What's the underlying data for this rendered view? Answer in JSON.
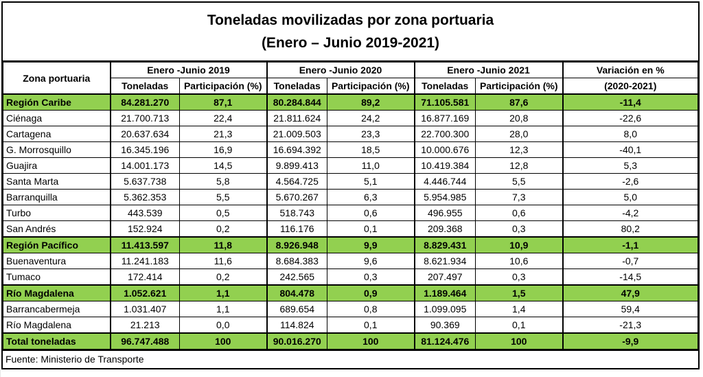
{
  "title": {
    "line1": "Toneladas movilizadas por zona portuaria",
    "line2": "(Enero – Junio 2019-2021)"
  },
  "header": {
    "zone": "Zona portuaria",
    "periods": [
      "Enero -Junio 2019",
      "Enero -Junio 2020",
      "Enero -Junio 2021"
    ],
    "tons": "Toneladas",
    "share": "Participación (%)",
    "variation_line1": "Variación en %",
    "variation_line2": "(2020-2021)"
  },
  "rows": [
    {
      "name": "Región Caribe",
      "t2019": "84.281.270",
      "p2019": "87,1",
      "t2020": "80.284.844",
      "p2020": "89,2",
      "t2021": "71.105.581",
      "p2021": "87,6",
      "var": "-11,4"
    },
    {
      "name": "Ciénaga",
      "t2019": "21.700.713",
      "p2019": "22,4",
      "t2020": "21.811.624",
      "p2020": "24,2",
      "t2021": "16.877.169",
      "p2021": "20,8",
      "var": "-22,6"
    },
    {
      "name": "Cartagena",
      "t2019": "20.637.634",
      "p2019": "21,3",
      "t2020": "21.009.503",
      "p2020": "23,3",
      "t2021": "22.700.300",
      "p2021": "28,0",
      "var": "8,0"
    },
    {
      "name": "G. Morrosquillo",
      "t2019": "16.345.196",
      "p2019": "16,9",
      "t2020": "16.694.392",
      "p2020": "18,5",
      "t2021": "10.000.676",
      "p2021": "12,3",
      "var": "-40,1"
    },
    {
      "name": "Guajira",
      "t2019": "14.001.173",
      "p2019": "14,5",
      "t2020": "9.899.413",
      "p2020": "11,0",
      "t2021": "10.419.384",
      "p2021": "12,8",
      "var": "5,3"
    },
    {
      "name": "Santa Marta",
      "t2019": "5.637.738",
      "p2019": "5,8",
      "t2020": "4.564.725",
      "p2020": "5,1",
      "t2021": "4.446.744",
      "p2021": "5,5",
      "var": "-2,6"
    },
    {
      "name": "Barranquilla",
      "t2019": "5.362.353",
      "p2019": "5,5",
      "t2020": "5.670.267",
      "p2020": "6,3",
      "t2021": "5.954.985",
      "p2021": "7,3",
      "var": "5,0"
    },
    {
      "name": "Turbo",
      "t2019": "443.539",
      "p2019": "0,5",
      "t2020": "518.743",
      "p2020": "0,6",
      "t2021": "496.955",
      "p2021": "0,6",
      "var": "-4,2"
    },
    {
      "name": "San Andrés",
      "t2019": "152.924",
      "p2019": "0,2",
      "t2020": "116.176",
      "p2020": "0,1",
      "t2021": "209.368",
      "p2021": "0,3",
      "var": "80,2"
    },
    {
      "name": "Región Pacífico",
      "t2019": "11.413.597",
      "p2019": "11,8",
      "t2020": "8.926.948",
      "p2020": "9,9",
      "t2021": "8.829.431",
      "p2021": "10,9",
      "var": "-1,1"
    },
    {
      "name": "Buenaventura",
      "t2019": "11.241.183",
      "p2019": "11,6",
      "t2020": "8.684.383",
      "p2020": "9,6",
      "t2021": "8.621.934",
      "p2021": "10,6",
      "var": "-0,7"
    },
    {
      "name": "Tumaco",
      "t2019": "172.414",
      "p2019": "0,2",
      "t2020": "242.565",
      "p2020": "0,3",
      "t2021": "207.497",
      "p2021": "0,3",
      "var": "-14,5"
    },
    {
      "name": "Río Magdalena",
      "t2019": "1.052.621",
      "p2019": "1,1",
      "t2020": "804.478",
      "p2020": "0,9",
      "t2021": "1.189.464",
      "p2021": "1,5",
      "var": "47,9"
    },
    {
      "name": "Barrancabermeja",
      "t2019": "1.031.407",
      "p2019": "1,1",
      "t2020": "689.654",
      "p2020": "0,8",
      "t2021": "1.099.095",
      "p2021": "1,4",
      "var": "59,4"
    },
    {
      "name": "Río Magdalena",
      "t2019": "21.213",
      "p2019": "0,0",
      "t2020": "114.824",
      "p2020": "0,1",
      "t2021": "90.369",
      "p2021": "0,1",
      "var": "-21,3"
    },
    {
      "name": "Total toneladas",
      "t2019": "96.747.488",
      "p2019": "100",
      "t2020": "90.016.270",
      "p2020": "100",
      "t2021": "81.124.476",
      "p2021": "100",
      "var": "-9,9"
    }
  ],
  "source": "Fuente: Ministerio de Transporte",
  "colors": {
    "highlight": "#92d050"
  }
}
